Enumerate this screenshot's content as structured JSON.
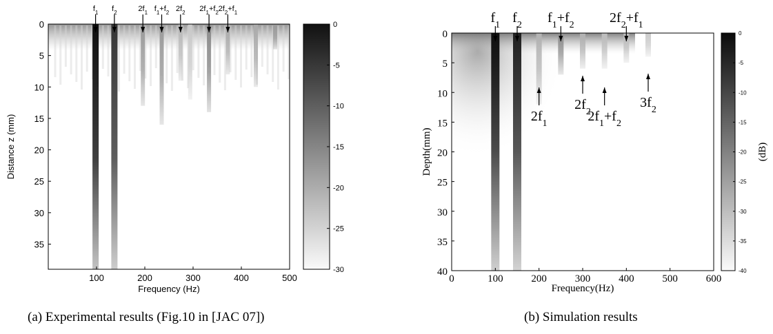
{
  "chart_data": [
    {
      "type": "heatmap",
      "caption": "(a) Experimental results (Fig.10 in [JAC 07])",
      "xlabel": "Frequency (Hz)",
      "ylabel": "Distance z (mm)",
      "xlim": [
        0,
        500
      ],
      "ylim": [
        0,
        39
      ],
      "y_inverted": true,
      "xticks": [
        100,
        200,
        300,
        400,
        500
      ],
      "yticks": [
        0,
        5,
        10,
        15,
        20,
        25,
        30,
        35
      ],
      "colorbar": {
        "ticks": [
          0,
          -5,
          -10,
          -15,
          -20,
          -25,
          -30
        ],
        "range": [
          -30,
          0
        ]
      },
      "columns": [
        {
          "x": 98,
          "depth": 39,
          "level": 0
        },
        {
          "x": 137,
          "depth": 39,
          "level": -5
        },
        {
          "x": 196,
          "depth": 13,
          "level": -18
        },
        {
          "x": 235,
          "depth": 16,
          "level": -18
        },
        {
          "x": 274,
          "depth": 9,
          "level": -22
        },
        {
          "x": 294,
          "depth": 12,
          "level": -24
        },
        {
          "x": 333,
          "depth": 14,
          "level": -16
        },
        {
          "x": 372,
          "depth": 8,
          "level": -20
        },
        {
          "x": 430,
          "depth": 10,
          "level": -20
        },
        {
          "x": 470,
          "depth": 4,
          "level": -18
        }
      ],
      "annotations": [
        {
          "label": "f1",
          "x": 98
        },
        {
          "label": "f2",
          "x": 137
        },
        {
          "label": "2f1",
          "x": 196
        },
        {
          "label": "f1+f2",
          "x": 235
        },
        {
          "label": "2f2",
          "x": 274
        },
        {
          "label": "2f1+f2",
          "x": 333
        },
        {
          "label": "2f2+f1",
          "x": 372
        }
      ]
    },
    {
      "type": "heatmap",
      "caption": "(b) Simulation results",
      "xlabel": "Frequency(Hz)",
      "ylabel": "Depth(mm)",
      "xlim": [
        0,
        600
      ],
      "ylim": [
        0,
        40
      ],
      "y_inverted": true,
      "xticks": [
        0,
        100,
        200,
        300,
        400,
        500,
        600
      ],
      "yticks": [
        0,
        5,
        10,
        15,
        20,
        25,
        30,
        35,
        40
      ],
      "colorbar": {
        "label": "(dB)",
        "ticks": [
          0,
          -5,
          -10,
          -15,
          -20,
          -25,
          -30,
          -35,
          -40
        ],
        "range": [
          -40,
          0
        ]
      },
      "columns": [
        {
          "x": 100,
          "depth": 40,
          "level": 0
        },
        {
          "x": 150,
          "depth": 40,
          "level": -3
        },
        {
          "x": 200,
          "depth": 12,
          "level": -28
        },
        {
          "x": 250,
          "depth": 7,
          "level": -22
        },
        {
          "x": 300,
          "depth": 6,
          "level": -28
        },
        {
          "x": 350,
          "depth": 6,
          "level": -30
        },
        {
          "x": 400,
          "depth": 5,
          "level": -30
        },
        {
          "x": 450,
          "depth": 4,
          "level": -32
        }
      ],
      "annotations": [
        {
          "label": "f1",
          "x": 100,
          "pos": "top"
        },
        {
          "label": "f2",
          "x": 150,
          "pos": "top"
        },
        {
          "label": "f1+f2",
          "x": 250,
          "pos": "top"
        },
        {
          "label": "2f2+f1",
          "x": 400,
          "pos": "top"
        },
        {
          "label": "2f1",
          "x": 200,
          "pos": "below"
        },
        {
          "label": "2f2",
          "x": 300,
          "pos": "below"
        },
        {
          "label": "2f1+f2",
          "x": 350,
          "pos": "below"
        },
        {
          "label": "3f2",
          "x": 450,
          "pos": "below"
        }
      ]
    }
  ]
}
